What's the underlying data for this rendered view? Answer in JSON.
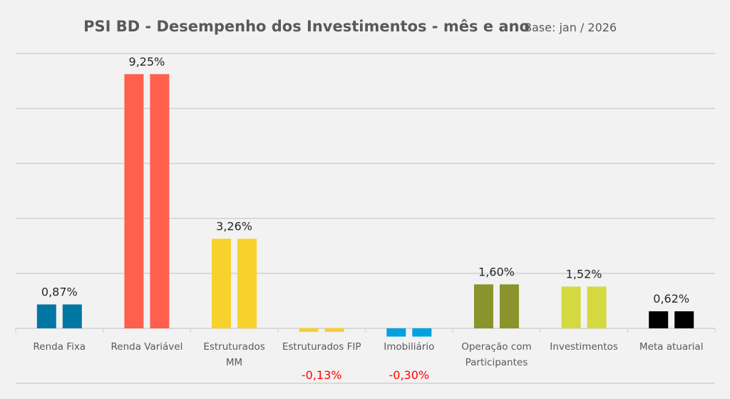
{
  "chart_data": {
    "type": "bar",
    "title": "PSI BD - Desempenho dos Investimentos - mês e ano",
    "subtitle": "Base: jan / 2026",
    "xlabel": "",
    "ylabel": "",
    "ylim": [
      -2,
      10
    ],
    "grid": true,
    "categories": [
      [
        "Renda Fixa"
      ],
      [
        "Renda Variável"
      ],
      [
        "Estruturados",
        "MM"
      ],
      [
        "Estruturados FIP"
      ],
      [
        "Imobiliário"
      ],
      [
        "Operação com",
        "Participantes"
      ],
      [
        "Investimentos"
      ],
      [
        "Meta atuarial"
      ]
    ],
    "colors": [
      "#0077a3",
      "#ff5f4d",
      "#f8d12c",
      "#f8d12c",
      "#00a2e0",
      "#8a932c",
      "#d4d93f",
      "#000000"
    ],
    "series": [
      {
        "values": [
          0.87,
          9.25,
          3.26,
          -0.13,
          -0.3,
          1.6,
          1.52,
          0.62
        ]
      },
      {
        "values": [
          0.87,
          9.25,
          3.26,
          -0.13,
          -0.3,
          1.6,
          1.52,
          0.62
        ]
      }
    ],
    "data_labels": [
      "0,87%",
      "9,25%",
      "3,26%",
      "-0,13%",
      "-0,30%",
      "1,60%",
      "1,52%",
      "0,62%"
    ]
  }
}
